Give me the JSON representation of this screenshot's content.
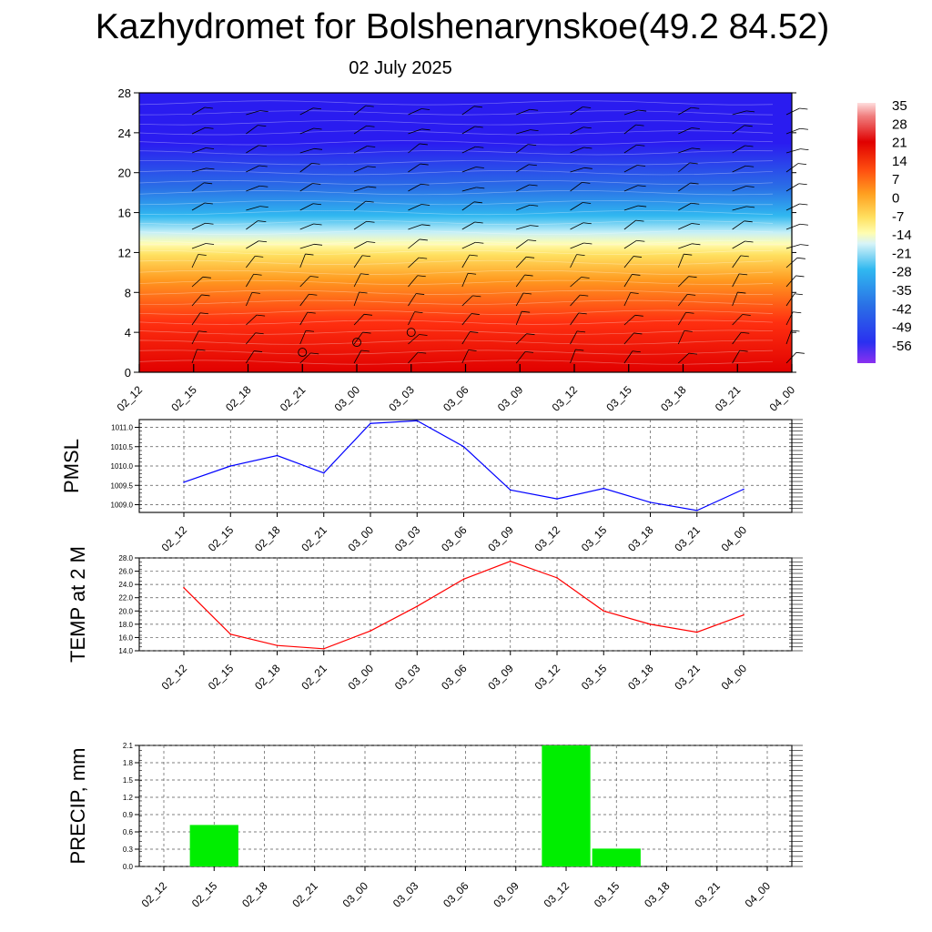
{
  "title": "Kazhydromet for Bolshenarynskoe(49.2 84.52)",
  "date_label": "02 July 2025",
  "chart_data": [
    {
      "id": "cross-section",
      "type": "heatmap",
      "ylabel": "",
      "x_ticks": [
        "02_12",
        "02_15",
        "02_18",
        "02_21",
        "03_00",
        "03_03",
        "03_06",
        "03_09",
        "03_12",
        "03_15",
        "03_18",
        "03_21",
        "04_00"
      ],
      "y_ticks": [
        0,
        4,
        8,
        12,
        16,
        20,
        24,
        28
      ],
      "ylim": [
        0,
        28
      ],
      "colorbar_ticks": [
        35,
        28,
        21,
        14,
        7,
        0,
        -7,
        -14,
        -21,
        -28,
        -35,
        -42,
        -49,
        -56
      ],
      "colorbar_range": [
        -60,
        37
      ],
      "colors": {
        "deep_cold": "#2a1cf0",
        "cold": "#2a6fe6",
        "cool": "#30b8f0",
        "pale": "#c7f0f7",
        "neutral": "#fffdb0",
        "warm": "#ffe060",
        "hot": "#ff9a20",
        "very_hot": "#ff3010",
        "extreme": "#e00000"
      },
      "freezing_level_km": 12.8,
      "calm_wind_markers": [
        {
          "x": "02_21",
          "y": 2
        },
        {
          "x": "03_00",
          "y": 3
        },
        {
          "x": "03_03",
          "y": 4
        }
      ]
    },
    {
      "id": "pmsl",
      "type": "line",
      "ylabel": "PMSL",
      "x": [
        "02_12",
        "02_15",
        "02_18",
        "02_21",
        "03_00",
        "03_03",
        "03_06",
        "03_09",
        "03_12",
        "03_15",
        "03_18",
        "03_21",
        "04_00"
      ],
      "values": [
        1009.58,
        1010.0,
        1010.27,
        1009.82,
        1011.1,
        1011.17,
        1010.5,
        1009.38,
        1009.15,
        1009.42,
        1009.06,
        1008.85,
        1009.4
      ],
      "ylim": [
        1008.8,
        1011.2
      ],
      "y_ticks": [
        "1009.0",
        "1009.5",
        "1010.0",
        "1010.5",
        "1011.0"
      ],
      "color": "#0000ff",
      "grid": true
    },
    {
      "id": "temp2m",
      "type": "line",
      "ylabel": "TEMP at 2 M",
      "x": [
        "02_12",
        "02_15",
        "02_18",
        "02_21",
        "03_00",
        "03_03",
        "03_06",
        "03_09",
        "03_12",
        "03_15",
        "03_18",
        "03_21",
        "04_00"
      ],
      "values": [
        23.5,
        16.5,
        14.8,
        14.3,
        17.0,
        20.7,
        24.8,
        27.5,
        25.0,
        20.0,
        18.0,
        16.8,
        19.4
      ],
      "ylim": [
        14.0,
        28.0
      ],
      "y_ticks": [
        "14.0",
        "16.0",
        "18.0",
        "20.0",
        "22.0",
        "24.0",
        "26.0",
        "28.0"
      ],
      "color": "#ff0000",
      "grid": true
    },
    {
      "id": "precip",
      "type": "bar",
      "ylabel": "PRECIP, mm",
      "categories": [
        "02_12",
        "02_15",
        "02_18",
        "02_21",
        "03_00",
        "03_03",
        "03_06",
        "03_09",
        "03_12",
        "03_15",
        "03_18",
        "03_21",
        "04_00"
      ],
      "values": [
        0,
        0.72,
        0,
        0,
        0,
        0,
        0,
        0,
        2.1,
        0.31,
        0,
        0,
        0
      ],
      "ylim": [
        0,
        2.1
      ],
      "y_ticks": [
        "0.0",
        "0.3",
        "0.6",
        "0.9",
        "1.2",
        "1.5",
        "1.8",
        "2.1"
      ],
      "color": "#00ee00",
      "grid": true
    }
  ]
}
